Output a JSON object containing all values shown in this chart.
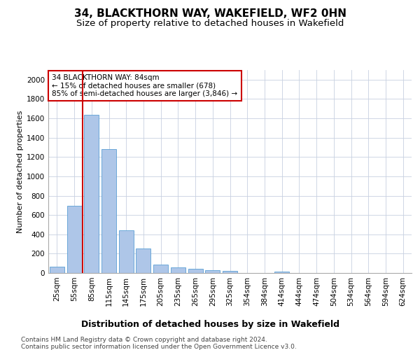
{
  "title1": "34, BLACKTHORN WAY, WAKEFIELD, WF2 0HN",
  "title2": "Size of property relative to detached houses in Wakefield",
  "xlabel": "Distribution of detached houses by size in Wakefield",
  "ylabel": "Number of detached properties",
  "categories": [
    "25sqm",
    "55sqm",
    "85sqm",
    "115sqm",
    "145sqm",
    "175sqm",
    "205sqm",
    "235sqm",
    "265sqm",
    "295sqm",
    "325sqm",
    "354sqm",
    "384sqm",
    "414sqm",
    "444sqm",
    "474sqm",
    "504sqm",
    "534sqm",
    "564sqm",
    "594sqm",
    "624sqm"
  ],
  "values": [
    65,
    695,
    1640,
    1285,
    445,
    255,
    90,
    55,
    40,
    28,
    25,
    0,
    0,
    18,
    0,
    0,
    0,
    0,
    0,
    0,
    0
  ],
  "bar_color": "#aec6e8",
  "bar_edge_color": "#5a9fd4",
  "vline_color": "#cc0000",
  "annotation_text": "34 BLACKTHORN WAY: 84sqm\n← 15% of detached houses are smaller (678)\n85% of semi-detached houses are larger (3,846) →",
  "annotation_box_color": "#ffffff",
  "annotation_box_edge": "#cc0000",
  "ylim": [
    0,
    2100
  ],
  "yticks": [
    0,
    200,
    400,
    600,
    800,
    1000,
    1200,
    1400,
    1600,
    1800,
    2000
  ],
  "footer1": "Contains HM Land Registry data © Crown copyright and database right 2024.",
  "footer2": "Contains public sector information licensed under the Open Government Licence v3.0.",
  "bg_color": "#ffffff",
  "grid_color": "#c8d0e0",
  "title1_fontsize": 11,
  "title2_fontsize": 9.5,
  "xlabel_fontsize": 9,
  "ylabel_fontsize": 8,
  "tick_fontsize": 7.5,
  "footer_fontsize": 6.5
}
